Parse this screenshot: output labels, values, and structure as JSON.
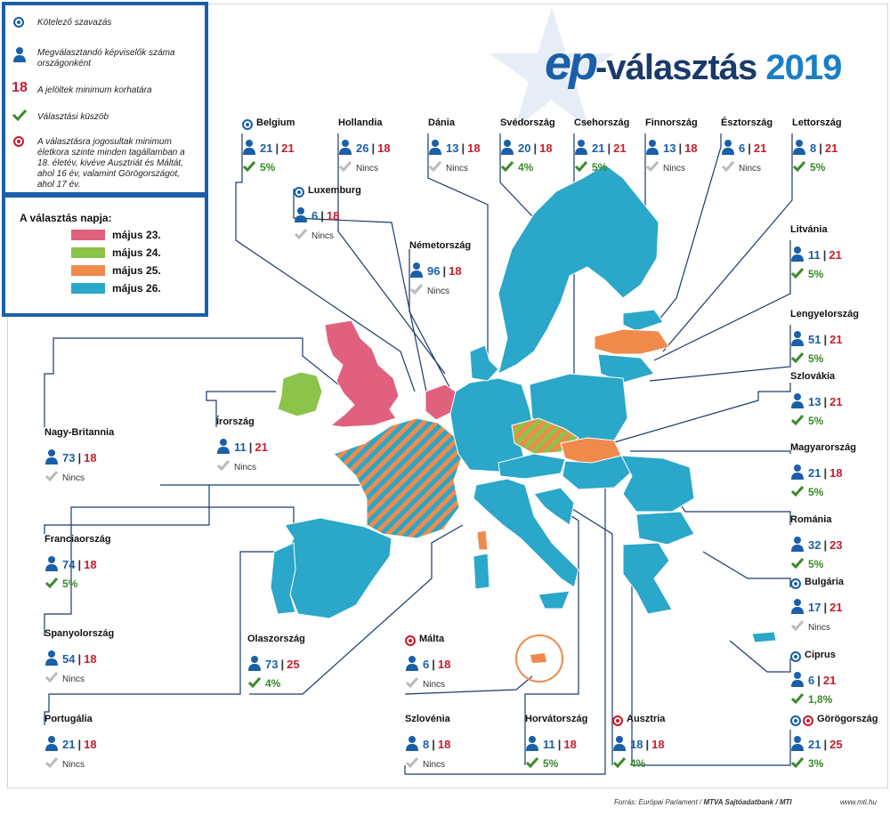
{
  "title": {
    "ep": "ep",
    "dash": "-választás",
    "year": "2019"
  },
  "legend": {
    "items": [
      {
        "icon": "compulsory-voting-icon",
        "text": "Kötelező szavazás"
      },
      {
        "icon": "person-icon",
        "text": "Megválasztandó képviselők száma országonként"
      },
      {
        "icon": "number-18",
        "text": "A jelöltek minimum korhatára",
        "symbol": "18"
      },
      {
        "icon": "checkmark-icon",
        "text": "Választási küszöb"
      },
      {
        "icon": "voting-age-icon",
        "text": "A választásra jogosultak minimum életkora szinte minden tagállamban a 18. életév, kivéve Ausztriát és Máltát, ahol 16 év, valamint Görögországot, ahol 17 év."
      }
    ]
  },
  "dates": {
    "heading": "A választás napja:",
    "items": [
      {
        "label": "május 23.",
        "color": "#e0607e"
      },
      {
        "label": "május 24.",
        "color": "#8cc34a"
      },
      {
        "label": "május 25.",
        "color": "#f08a4b"
      },
      {
        "label": "május 26.",
        "color": "#2aa7c9"
      }
    ]
  },
  "countries": [
    {
      "name": "Belgium",
      "seats": "21",
      "age": "21",
      "threshold": "5%",
      "compulsory": true,
      "voting_age_exception": false
    },
    {
      "name": "Hollandia",
      "seats": "26",
      "age": "18",
      "threshold": "Nincs",
      "compulsory": false,
      "voting_age_exception": false
    },
    {
      "name": "Dánia",
      "seats": "13",
      "age": "18",
      "threshold": "Nincs",
      "compulsory": false,
      "voting_age_exception": false
    },
    {
      "name": "Svédország",
      "seats": "20",
      "age": "18",
      "threshold": "4%",
      "compulsory": false,
      "voting_age_exception": false
    },
    {
      "name": "Csehország",
      "seats": "21",
      "age": "21",
      "threshold": "5%",
      "compulsory": false,
      "voting_age_exception": false
    },
    {
      "name": "Finnország",
      "seats": "13",
      "age": "18",
      "threshold": "Nincs",
      "compulsory": false,
      "voting_age_exception": false
    },
    {
      "name": "Észtország",
      "seats": "6",
      "age": "21",
      "threshold": "Nincs",
      "compulsory": false,
      "voting_age_exception": false
    },
    {
      "name": "Lettország",
      "seats": "8",
      "age": "21",
      "threshold": "5%",
      "compulsory": false,
      "voting_age_exception": false
    },
    {
      "name": "Luxemburg",
      "seats": "6",
      "age": "18",
      "threshold": "Nincs",
      "compulsory": true,
      "voting_age_exception": false
    },
    {
      "name": "Németország",
      "seats": "96",
      "age": "18",
      "threshold": "Nincs",
      "compulsory": false,
      "voting_age_exception": false
    },
    {
      "name": "Litvánia",
      "seats": "11",
      "age": "21",
      "threshold": "5%",
      "compulsory": false,
      "voting_age_exception": false
    },
    {
      "name": "Lengyelország",
      "seats": "51",
      "age": "21",
      "threshold": "5%",
      "compulsory": false,
      "voting_age_exception": false
    },
    {
      "name": "Szlovákia",
      "seats": "13",
      "age": "21",
      "threshold": "5%",
      "compulsory": false,
      "voting_age_exception": false
    },
    {
      "name": "Nagy-Britannia",
      "seats": "73",
      "age": "18",
      "threshold": "Nincs",
      "compulsory": false,
      "voting_age_exception": false
    },
    {
      "name": "Írország",
      "seats": "11",
      "age": "21",
      "threshold": "Nincs",
      "compulsory": false,
      "voting_age_exception": false
    },
    {
      "name": "Magyarország",
      "seats": "21",
      "age": "18",
      "threshold": "5%",
      "compulsory": false,
      "voting_age_exception": false
    },
    {
      "name": "Franciaország",
      "seats": "74",
      "age": "18",
      "threshold": "5%",
      "compulsory": false,
      "voting_age_exception": false
    },
    {
      "name": "Románia",
      "seats": "32",
      "age": "23",
      "threshold": "5%",
      "compulsory": false,
      "voting_age_exception": false
    },
    {
      "name": "Bulgária",
      "seats": "17",
      "age": "21",
      "threshold": "Nincs",
      "compulsory": true,
      "voting_age_exception": false
    },
    {
      "name": "Spanyolország",
      "seats": "54",
      "age": "18",
      "threshold": "Nincs",
      "compulsory": false,
      "voting_age_exception": false
    },
    {
      "name": "Olaszország",
      "seats": "73",
      "age": "25",
      "threshold": "4%",
      "compulsory": false,
      "voting_age_exception": false
    },
    {
      "name": "Málta",
      "seats": "6",
      "age": "18",
      "threshold": "Nincs",
      "compulsory": false,
      "voting_age_exception": true
    },
    {
      "name": "Ciprus",
      "seats": "6",
      "age": "21",
      "threshold": "1,8%",
      "compulsory": true,
      "voting_age_exception": false
    },
    {
      "name": "Portugália",
      "seats": "21",
      "age": "18",
      "threshold": "Nincs",
      "compulsory": false,
      "voting_age_exception": false
    },
    {
      "name": "Szlovénia",
      "seats": "8",
      "age": "18",
      "threshold": "Nincs",
      "compulsory": false,
      "voting_age_exception": false
    },
    {
      "name": "Horvátország",
      "seats": "11",
      "age": "18",
      "threshold": "5%",
      "compulsory": false,
      "voting_age_exception": false
    },
    {
      "name": "Ausztria",
      "seats": "18",
      "age": "18",
      "threshold": "4%",
      "compulsory": false,
      "voting_age_exception": true
    },
    {
      "name": "Görögország",
      "seats": "21",
      "age": "25",
      "threshold": "3%",
      "compulsory": true,
      "voting_age_exception": true
    }
  ],
  "footer": {
    "source_plain": "Forrás: Európai Parlament / ",
    "source_bold": "MTVA Sajtóadatbank / MTI",
    "site": "www.mti.hu"
  }
}
